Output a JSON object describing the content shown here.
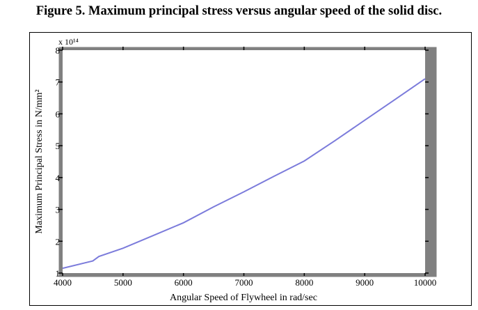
{
  "caption": "Figure 5. Maximum principal stress versus angular speed of the solid disc.",
  "colors": {
    "line": "#7b7bdb",
    "frame": "#808080",
    "plot_bg": "#ffffff"
  },
  "chart_data": {
    "type": "line",
    "title": "",
    "xlabel": "Angular Speed of Flywheel in rad/sec",
    "ylabel": "Maximum Principal Stress in N/mm²",
    "y_multiplier": "x 10¹⁴",
    "xlim": [
      4000,
      10000
    ],
    "ylim": [
      1,
      8
    ],
    "xticks": [
      4000,
      5000,
      6000,
      7000,
      8000,
      9000,
      10000
    ],
    "yticks": [
      1,
      2,
      3,
      4,
      5,
      6,
      7,
      8
    ],
    "grid": false,
    "series": [
      {
        "x": [
          4000,
          4500,
          4600,
          5000,
          5500,
          6000,
          6500,
          7000,
          7500,
          8000,
          8500,
          9000,
          9500,
          10000
        ],
        "y": [
          1.15,
          1.38,
          1.52,
          1.78,
          2.18,
          2.58,
          3.08,
          3.55,
          4.04,
          4.52,
          5.15,
          5.8,
          6.45,
          7.1
        ]
      }
    ]
  }
}
